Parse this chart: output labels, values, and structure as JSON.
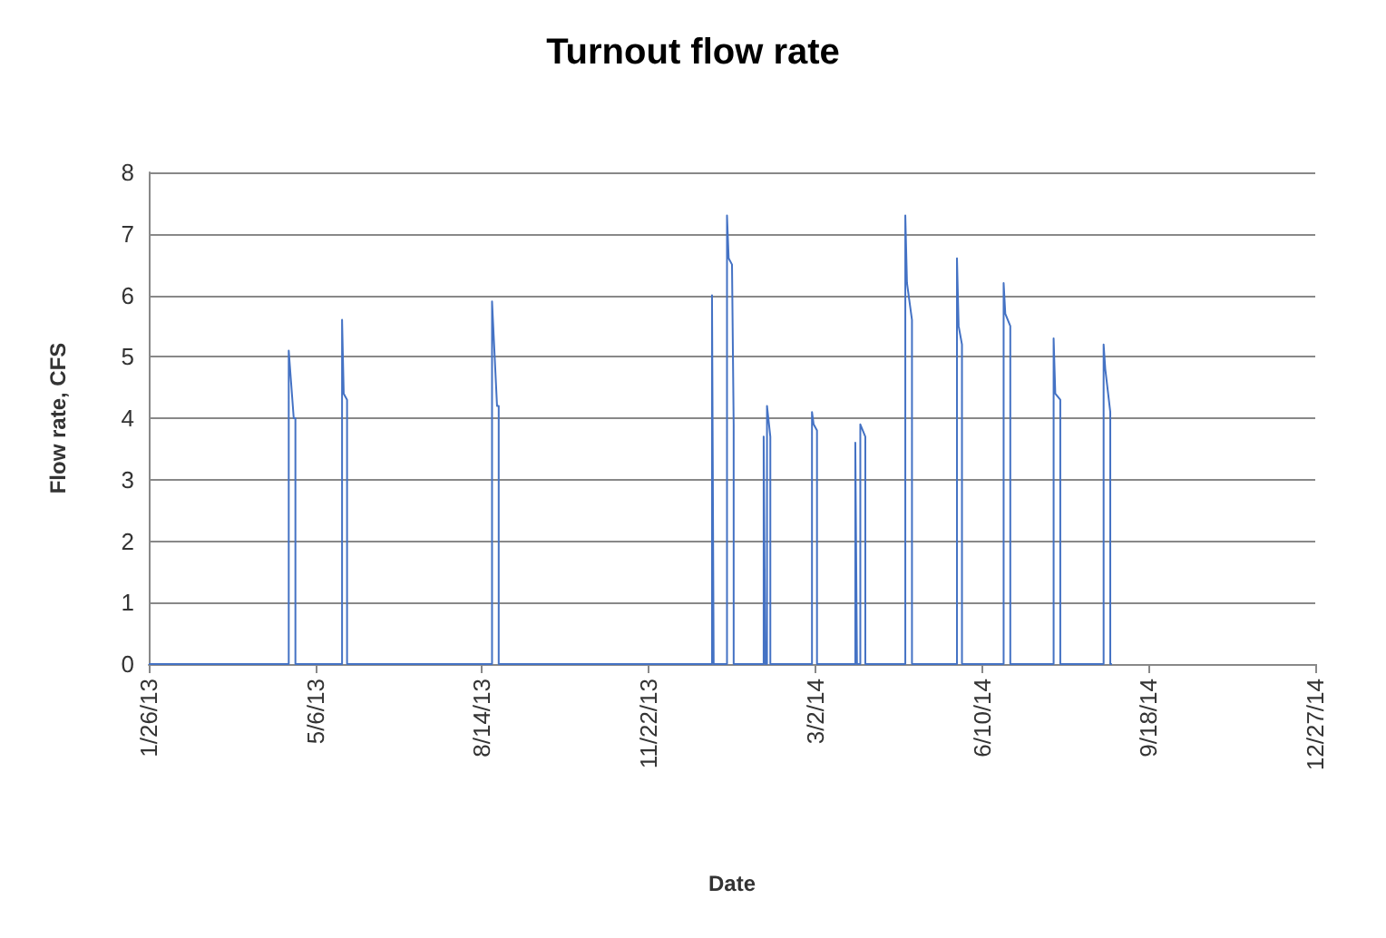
{
  "chart_data": {
    "type": "line",
    "title": "Turnout flow rate",
    "xlabel": "Date",
    "ylabel": "Flow rate, CFS",
    "xlim": [
      "2013-01-26",
      "2014-12-27"
    ],
    "xticks": [
      {
        "value": "2013-01-26",
        "label": "1/26/13"
      },
      {
        "value": "2013-05-06",
        "label": "5/6/13"
      },
      {
        "value": "2013-08-14",
        "label": "8/14/13"
      },
      {
        "value": "2013-11-22",
        "label": "11/22/13"
      },
      {
        "value": "2014-03-02",
        "label": "3/2/14"
      },
      {
        "value": "2014-06-10",
        "label": "6/10/14"
      },
      {
        "value": "2014-09-18",
        "label": "9/18/14"
      },
      {
        "value": "2014-12-27",
        "label": "12/27/14"
      }
    ],
    "ylim": [
      0,
      8
    ],
    "yticks": [
      0,
      1,
      2,
      3,
      4,
      5,
      6,
      7,
      8
    ],
    "grid": "y",
    "marker": "none",
    "line_style": "solid",
    "series": [
      {
        "color": "#4472c4",
        "x": [
          "2013-01-26",
          "2013-04-20",
          "2013-04-20",
          "2013-04-23",
          "2013-04-24",
          "2013-04-24",
          "2013-05-22",
          "2013-05-22",
          "2013-05-23",
          "2013-05-25",
          "2013-05-25",
          "2013-08-20",
          "2013-08-20",
          "2013-08-23",
          "2013-08-24",
          "2013-08-24",
          "2013-12-30",
          "2013-12-30",
          "2013-12-31",
          "2014-01-08",
          "2014-01-08",
          "2014-01-09",
          "2014-01-11",
          "2014-01-12",
          "2014-01-12",
          "2014-01-30",
          "2014-01-30",
          "2014-01-31",
          "2014-02-01",
          "2014-02-01",
          "2014-02-03",
          "2014-02-03",
          "2014-02-28",
          "2014-02-28",
          "2014-03-01",
          "2014-03-03",
          "2014-03-03",
          "2014-03-26",
          "2014-03-26",
          "2014-03-27",
          "2014-03-29",
          "2014-03-29",
          "2014-04-01",
          "2014-04-01",
          "2014-04-25",
          "2014-04-25",
          "2014-04-26",
          "2014-04-28",
          "2014-04-29",
          "2014-04-29",
          "2014-05-26",
          "2014-05-26",
          "2014-05-27",
          "2014-05-29",
          "2014-05-29",
          "2014-06-23",
          "2014-06-23",
          "2014-06-24",
          "2014-06-27",
          "2014-06-27",
          "2014-07-23",
          "2014-07-23",
          "2014-07-24",
          "2014-07-27",
          "2014-07-27",
          "2014-08-22",
          "2014-08-22",
          "2014-08-23",
          "2014-08-26",
          "2014-08-26",
          "2014-08-27"
        ],
        "values": [
          0,
          0,
          5.1,
          4.0,
          4.0,
          0,
          0,
          5.6,
          4.4,
          4.3,
          0,
          0,
          5.9,
          4.2,
          4.2,
          0,
          0,
          6.0,
          0,
          0,
          7.3,
          6.6,
          6.5,
          3.9,
          0,
          0,
          3.7,
          0,
          0,
          4.2,
          3.7,
          0,
          0,
          4.1,
          3.9,
          3.8,
          0,
          0,
          3.6,
          0,
          0,
          3.9,
          3.7,
          0,
          0,
          7.3,
          6.2,
          5.8,
          5.6,
          0,
          0,
          6.6,
          5.5,
          5.2,
          0,
          0,
          6.2,
          5.7,
          5.5,
          0,
          0,
          5.3,
          4.4,
          4.3,
          0,
          0,
          5.2,
          4.8,
          4.1,
          0,
          0
        ]
      }
    ]
  }
}
